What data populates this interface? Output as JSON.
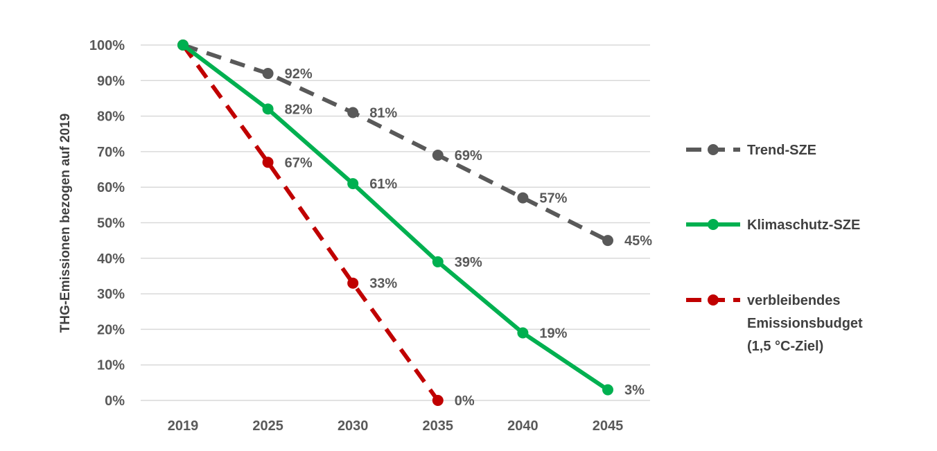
{
  "chart_data": {
    "type": "line",
    "ylabel": "THG-Emissionen bezogen auf 2019",
    "xlabel": "",
    "categories": [
      "2019",
      "2025",
      "2030",
      "2035",
      "2040",
      "2045"
    ],
    "y_ticks": [
      "0%",
      "10%",
      "20%",
      "30%",
      "40%",
      "50%",
      "60%",
      "70%",
      "80%",
      "90%",
      "100%"
    ],
    "ylim": [
      0,
      100
    ],
    "grid": true,
    "legend_position": "right",
    "series": [
      {
        "name": "Trend-SZE",
        "values": [
          100,
          92,
          81,
          69,
          57,
          45
        ],
        "labels": [
          "",
          "92%",
          "81%",
          "69%",
          "57%",
          "45%"
        ],
        "color": "#595959",
        "dashed": true
      },
      {
        "name": "Klimaschutz-SZE",
        "values": [
          100,
          82,
          61,
          39,
          19,
          3
        ],
        "labels": [
          "",
          "82%",
          "61%",
          "39%",
          "19%",
          "3%"
        ],
        "color": "#00B050",
        "dashed": false
      },
      {
        "name": "verbleibendes Emissionsbudget (1,5 °C-Ziel)",
        "legend_lines": [
          "verbleibendes",
          "Emissionsbudget",
          "(1,5 °C-Ziel)"
        ],
        "values": [
          100,
          67,
          33,
          0,
          null,
          null
        ],
        "labels": [
          "",
          "67%",
          "33%",
          "0%",
          "",
          ""
        ],
        "color": "#C00000",
        "dashed": true
      }
    ]
  }
}
